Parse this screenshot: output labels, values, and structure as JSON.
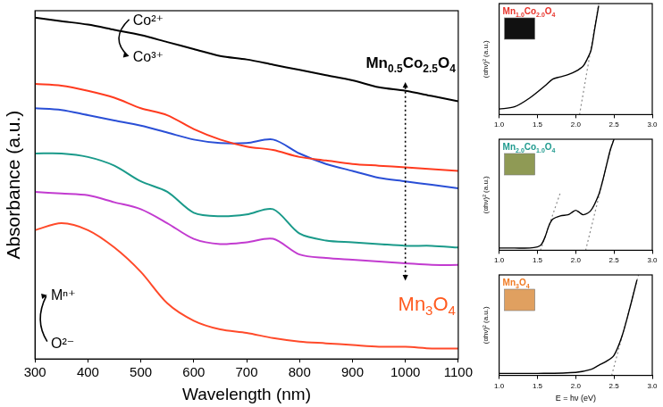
{
  "chart_data": [
    {
      "type": "line",
      "x_label": "Wavelength (nm)",
      "y_label": "Absorbance (a.u.)",
      "x": [
        300,
        350,
        400,
        450,
        500,
        550,
        600,
        650,
        700,
        750,
        800,
        850,
        900,
        950,
        1000,
        1050,
        1100
      ],
      "series": [
        {
          "color": "#000000",
          "values": [
            98,
            97,
            96,
            94.5,
            93,
            91,
            89,
            87,
            86,
            84.5,
            83,
            81.5,
            80,
            78,
            77,
            75.5,
            74
          ]
        },
        {
          "color": "#ff3b1f",
          "values": [
            79,
            78.5,
            77,
            75,
            72,
            70,
            66,
            63,
            61,
            60,
            58,
            57,
            56,
            55.5,
            55,
            54.5,
            54
          ]
        },
        {
          "color": "#2a4fd6",
          "values": [
            72,
            71.5,
            70,
            68.5,
            67,
            65,
            63,
            62,
            62,
            63,
            59,
            56,
            54,
            52,
            51,
            50,
            49
          ]
        },
        {
          "color": "#1a9a8a",
          "values": [
            59,
            59,
            58,
            55.5,
            51,
            48,
            42,
            41,
            41.5,
            43,
            36,
            34,
            33.5,
            33,
            32.5,
            32.5,
            32
          ]
        },
        {
          "color": "#c23bd0",
          "values": [
            48,
            47.5,
            47,
            45,
            43,
            39,
            34.5,
            33,
            33.5,
            34.5,
            30,
            29,
            28.5,
            28,
            27.5,
            27,
            27
          ]
        },
        {
          "color": "#ff4a2a",
          "values": [
            37,
            39,
            37,
            32,
            25,
            16,
            11,
            8.5,
            7.5,
            6,
            5,
            4.5,
            4,
            3.5,
            3.5,
            3,
            3
          ]
        }
      ],
      "xlim": [
        300,
        1100
      ],
      "xticks": [
        300,
        400,
        500,
        600,
        700,
        800,
        900,
        1000,
        1100
      ],
      "ylim": [
        0,
        100
      ],
      "tick_labels": "x",
      "grid": false,
      "annotations": [
        {
          "text": "Co²⁺"
        },
        {
          "text": "Co³⁺"
        },
        {
          "text": "Mn0.5Co2.5O4"
        },
        {
          "text": "Mn3O4"
        },
        {
          "text": "Mⁿ⁺"
        },
        {
          "text": "O²⁻"
        }
      ]
    },
    {
      "type": "line",
      "title": "Mn1.0Co2.0O4",
      "y_label": "(αhν)² (a.u.)",
      "series": [
        {
          "color": "#000000",
          "line_style": "solid",
          "x": [
            1.0,
            1.2,
            1.4,
            1.6,
            1.7,
            1.8,
            1.9,
            2.0,
            2.1,
            2.15,
            2.2,
            2.25,
            2.3
          ],
          "values": [
            0.05,
            0.07,
            0.15,
            0.26,
            0.32,
            0.34,
            0.36,
            0.39,
            0.44,
            0.5,
            0.58,
            0.78,
            0.98
          ]
        },
        {
          "color": "#8a8a8a",
          "line_style": "dotted",
          "x": [
            2.05,
            2.3
          ],
          "values": [
            0,
            1.0
          ]
        }
      ],
      "xlim": [
        1.0,
        3.0
      ],
      "xticks": [
        {
          "value": 1.0,
          "label": "1.0"
        },
        {
          "value": 1.5,
          "label": "1.5"
        },
        {
          "value": 2.0,
          "label": "2.0"
        },
        {
          "value": 2.5,
          "label": "2.5"
        },
        {
          "value": 3.0,
          "label": "3.0"
        }
      ],
      "ylim": [
        0,
        1
      ],
      "tick_labels": "x",
      "grid": false
    },
    {
      "type": "line",
      "title": "Mn2.0Co1.0O4",
      "y_label": "(αhν)² (a.u.)",
      "series": [
        {
          "color": "#000000",
          "line_style": "solid",
          "x": [
            1.0,
            1.2,
            1.4,
            1.5,
            1.55,
            1.6,
            1.65,
            1.7,
            1.8,
            1.9,
            1.95,
            2.0,
            2.05,
            2.1,
            2.2,
            2.3,
            2.35,
            2.4,
            2.45,
            2.5
          ],
          "values": [
            0.02,
            0.02,
            0.02,
            0.03,
            0.05,
            0.12,
            0.22,
            0.28,
            0.31,
            0.32,
            0.34,
            0.36,
            0.34,
            0.32,
            0.36,
            0.5,
            0.62,
            0.76,
            0.9,
            1.0
          ]
        },
        {
          "color": "#8a8a8a",
          "line_style": "dotted",
          "x": [
            1.54,
            1.8
          ],
          "values": [
            0,
            0.52
          ]
        },
        {
          "color": "#8a8a8a",
          "line_style": "dotted",
          "x": [
            2.13,
            2.48
          ],
          "values": [
            0,
            0.98
          ]
        }
      ],
      "xlim": [
        1.0,
        3.0
      ],
      "xticks": [
        {
          "value": 1.0,
          "label": "1.0"
        },
        {
          "value": 1.5,
          "label": "1.5"
        },
        {
          "value": 2.0,
          "label": "2.0"
        },
        {
          "value": 2.5,
          "label": "2.5"
        },
        {
          "value": 3.0,
          "label": "3.0"
        }
      ],
      "ylim": [
        0,
        1
      ],
      "tick_labels": "x",
      "grid": false
    },
    {
      "type": "line",
      "title": "Mn3O4",
      "y_label": "(αhν)² (a.u.)",
      "x_label": "E = hν (eV)",
      "series": [
        {
          "color": "#000000",
          "line_style": "solid",
          "x": [
            1.0,
            1.5,
            2.0,
            2.2,
            2.3,
            2.4,
            2.5,
            2.6,
            2.7,
            2.8
          ],
          "values": [
            0.02,
            0.02,
            0.03,
            0.06,
            0.1,
            0.14,
            0.2,
            0.38,
            0.65,
            0.95
          ]
        },
        {
          "color": "#8a8a8a",
          "line_style": "dotted",
          "x": [
            2.47,
            2.82
          ],
          "values": [
            0,
            1.0
          ]
        }
      ],
      "xlim": [
        1.0,
        3.0
      ],
      "xticks": [
        {
          "value": 1.0,
          "label": "1.0"
        },
        {
          "value": 1.5,
          "label": "1.5"
        },
        {
          "value": 2.0,
          "label": "2.0"
        },
        {
          "value": 2.5,
          "label": "2.5"
        },
        {
          "value": 3.0,
          "label": "3.0"
        }
      ],
      "ylim": [
        0,
        1
      ],
      "tick_labels": "x",
      "grid": false
    }
  ]
}
